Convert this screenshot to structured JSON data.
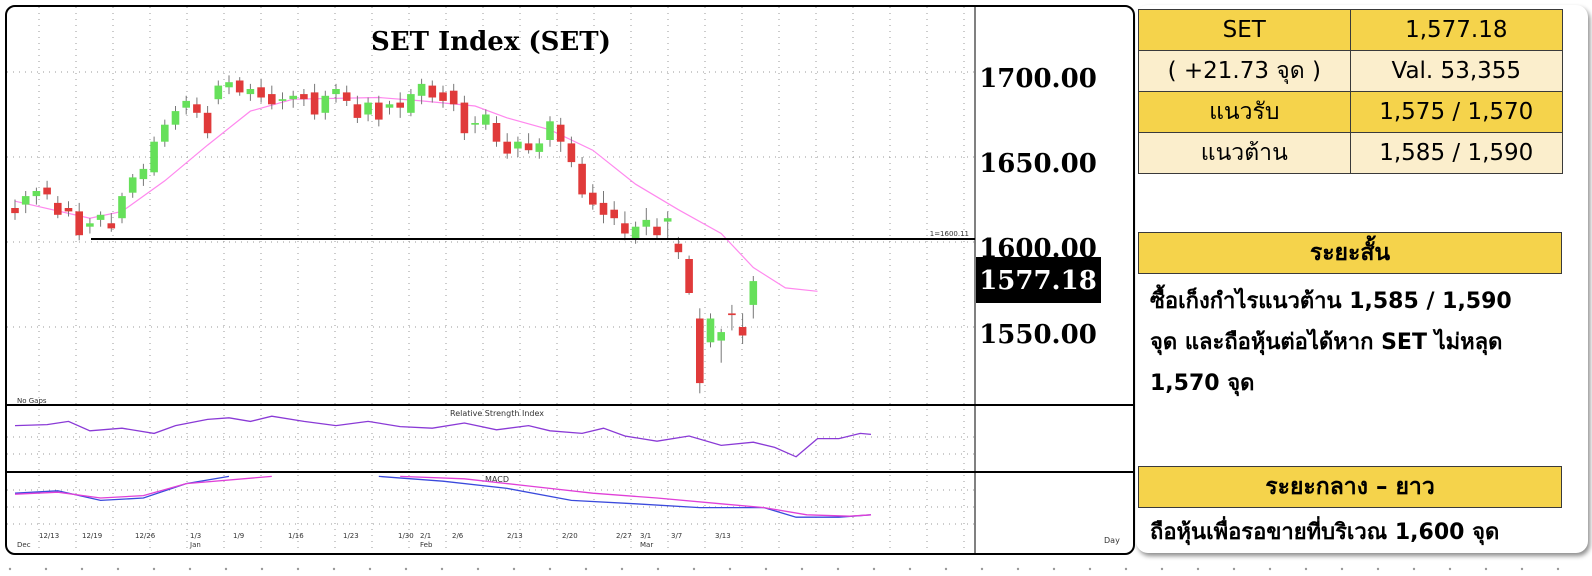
{
  "chart_data": {
    "type": "candlestick",
    "title": "SET Index (SET)",
    "current_price": "1577.18",
    "price_axis_labels": [
      "1700.00",
      "1650.00",
      "1600.00",
      "1550.00"
    ],
    "ylim": [
      1515,
      1738
    ],
    "support_line_value": 1600,
    "support_line_label": "1=1600.11",
    "date_labels": [
      "12/13",
      "12/19",
      "12/26",
      "1/3",
      "1/9",
      "1/16",
      "1/23",
      "1/30",
      "2/1",
      "2/6",
      "2/13",
      "2/20",
      "2/27",
      "3/1",
      "3/7",
      "3/13"
    ],
    "month_labels": [
      "Dec",
      "Jan",
      "Feb",
      "Mar"
    ],
    "x_axis_unit": "Day",
    "note": "No Gaps",
    "rsi_title": "Relative Strength Index",
    "macd_title": "MACD",
    "candles": [
      [
        1620,
        1625,
        1613,
        1617
      ],
      [
        1622,
        1630,
        1617,
        1627
      ],
      [
        1627,
        1632,
        1622,
        1630
      ],
      [
        1632,
        1636,
        1625,
        1628
      ],
      [
        1623,
        1627,
        1614,
        1616
      ],
      [
        1620,
        1624,
        1615,
        1618
      ],
      [
        1618,
        1623,
        1601,
        1604
      ],
      [
        1609,
        1614,
        1605,
        1611
      ],
      [
        1613,
        1618,
        1609,
        1616
      ],
      [
        1611,
        1617,
        1606,
        1608
      ],
      [
        1614,
        1629,
        1611,
        1627
      ],
      [
        1629,
        1640,
        1626,
        1638
      ],
      [
        1637,
        1646,
        1633,
        1643
      ],
      [
        1641,
        1662,
        1639,
        1659
      ],
      [
        1659,
        1672,
        1656,
        1669
      ],
      [
        1669,
        1680,
        1666,
        1677
      ],
      [
        1679,
        1686,
        1675,
        1683
      ],
      [
        1681,
        1685,
        1673,
        1676
      ],
      [
        1676,
        1680,
        1661,
        1664
      ],
      [
        1684,
        1695,
        1681,
        1692
      ],
      [
        1691,
        1698,
        1687,
        1694
      ],
      [
        1695,
        1697,
        1686,
        1688
      ],
      [
        1687,
        1693,
        1683,
        1690
      ],
      [
        1691,
        1696,
        1682,
        1685
      ],
      [
        1687,
        1692,
        1678,
        1681
      ],
      [
        1683,
        1688,
        1678,
        1684
      ],
      [
        1684,
        1689,
        1679,
        1686
      ],
      [
        1687,
        1690,
        1680,
        1684
      ],
      [
        1688,
        1693,
        1672,
        1675
      ],
      [
        1676,
        1689,
        1672,
        1686
      ],
      [
        1687,
        1693,
        1682,
        1690
      ],
      [
        1688,
        1692,
        1680,
        1683
      ],
      [
        1681,
        1686,
        1670,
        1673
      ],
      [
        1675,
        1685,
        1671,
        1682
      ],
      [
        1682,
        1686,
        1668,
        1672
      ],
      [
        1679,
        1683,
        1675,
        1681
      ],
      [
        1682,
        1688,
        1673,
        1679
      ],
      [
        1676,
        1690,
        1674,
        1687
      ],
      [
        1686,
        1696,
        1681,
        1693
      ],
      [
        1692,
        1695,
        1682,
        1685
      ],
      [
        1688,
        1692,
        1679,
        1683
      ],
      [
        1689,
        1693,
        1677,
        1681
      ],
      [
        1682,
        1686,
        1660,
        1664
      ],
      [
        1669,
        1674,
        1664,
        1670
      ],
      [
        1669,
        1678,
        1666,
        1675
      ],
      [
        1670,
        1674,
        1656,
        1659
      ],
      [
        1659,
        1664,
        1649,
        1652
      ],
      [
        1655,
        1662,
        1650,
        1659
      ],
      [
        1658,
        1664,
        1652,
        1654
      ],
      [
        1653,
        1661,
        1649,
        1658
      ],
      [
        1660,
        1674,
        1656,
        1671
      ],
      [
        1669,
        1673,
        1653,
        1659
      ],
      [
        1658,
        1662,
        1644,
        1647
      ],
      [
        1646,
        1650,
        1626,
        1628
      ],
      [
        1629,
        1634,
        1619,
        1622
      ],
      [
        1623,
        1630,
        1611,
        1616
      ],
      [
        1619,
        1624,
        1610,
        1614
      ],
      [
        1611,
        1618,
        1601,
        1605
      ],
      [
        1602,
        1612,
        1599,
        1609
      ],
      [
        1609,
        1620,
        1604,
        1613
      ],
      [
        1609,
        1614,
        1602,
        1604
      ],
      [
        1612,
        1618,
        1602,
        1614
      ],
      [
        1599,
        1603,
        1590,
        1594
      ],
      [
        1590,
        1592,
        1569,
        1570
      ],
      [
        1555,
        1561,
        1511,
        1517
      ],
      [
        1541,
        1558,
        1538,
        1555
      ],
      [
        1542,
        1549,
        1529,
        1547
      ],
      [
        1558,
        1563,
        1548,
        1557
      ],
      [
        1550,
        1558,
        1540,
        1545
      ],
      [
        1563,
        1580,
        1555,
        1577
      ]
    ],
    "ma": [
      [
        0,
        1624
      ],
      [
        7,
        1614
      ],
      [
        10,
        1618
      ],
      [
        14,
        1636
      ],
      [
        18,
        1657
      ],
      [
        22,
        1677
      ],
      [
        26,
        1684
      ],
      [
        34,
        1685
      ],
      [
        38,
        1683
      ],
      [
        43,
        1680
      ],
      [
        46,
        1673
      ],
      [
        50,
        1666
      ],
      [
        54,
        1654
      ],
      [
        58,
        1634
      ],
      [
        62,
        1619
      ],
      [
        66,
        1605
      ],
      [
        69,
        1585
      ],
      [
        72,
        1573
      ],
      [
        75,
        1571
      ]
    ],
    "rsi": [
      [
        0,
        0.3
      ],
      [
        3,
        0.28
      ],
      [
        5,
        0.22
      ],
      [
        7,
        0.4
      ],
      [
        10,
        0.35
      ],
      [
        13,
        0.45
      ],
      [
        15,
        0.3
      ],
      [
        18,
        0.18
      ],
      [
        20,
        0.15
      ],
      [
        22,
        0.22
      ],
      [
        24,
        0.12
      ],
      [
        27,
        0.22
      ],
      [
        30,
        0.3
      ],
      [
        33,
        0.22
      ],
      [
        36,
        0.32
      ],
      [
        39,
        0.35
      ],
      [
        42,
        0.25
      ],
      [
        45,
        0.38
      ],
      [
        48,
        0.3
      ],
      [
        50,
        0.4
      ],
      [
        53,
        0.45
      ],
      [
        55,
        0.35
      ],
      [
        57,
        0.5
      ],
      [
        60,
        0.6
      ],
      [
        63,
        0.5
      ],
      [
        66,
        0.68
      ],
      [
        69,
        0.62
      ],
      [
        71,
        0.72
      ],
      [
        73,
        0.9
      ],
      [
        75,
        0.55
      ],
      [
        77,
        0.55
      ],
      [
        79,
        0.45
      ],
      [
        80,
        0.47
      ]
    ],
    "macd_segments": [
      {
        "series": "macd",
        "points": [
          [
            0,
            0.4
          ],
          [
            4,
            0.35
          ],
          [
            8,
            0.55
          ],
          [
            12,
            0.5
          ],
          [
            16,
            0.2
          ],
          [
            20,
            0.05
          ]
        ]
      },
      {
        "series": "signal",
        "points": [
          [
            0,
            0.42
          ],
          [
            4,
            0.38
          ],
          [
            8,
            0.5
          ],
          [
            12,
            0.45
          ],
          [
            16,
            0.2
          ],
          [
            24,
            0.05
          ]
        ]
      },
      {
        "series": "macd",
        "points": [
          [
            34,
            0.05
          ],
          [
            40,
            0.15
          ],
          [
            46,
            0.3
          ],
          [
            52,
            0.55
          ],
          [
            58,
            0.62
          ],
          [
            64,
            0.7
          ],
          [
            70,
            0.7
          ],
          [
            73,
            0.9
          ],
          [
            77,
            0.9
          ],
          [
            80,
            0.85
          ]
        ]
      },
      {
        "series": "signal",
        "points": [
          [
            36,
            0.05
          ],
          [
            42,
            0.1
          ],
          [
            48,
            0.25
          ],
          [
            54,
            0.4
          ],
          [
            60,
            0.5
          ],
          [
            66,
            0.62
          ],
          [
            70,
            0.7
          ],
          [
            74,
            0.85
          ],
          [
            78,
            0.88
          ],
          [
            80,
            0.85
          ]
        ]
      }
    ]
  },
  "quote": {
    "symbol": "SET",
    "price": "1,577.18",
    "change": "( +21.73 จุด )",
    "value": "Val. 53,355",
    "support_label": "แนวรับ",
    "support_value": "1,575 / 1,570",
    "resistance_label": "แนวต้าน",
    "resistance_value": "1,585 / 1,590"
  },
  "short_term": {
    "heading": "ระยะสั้น",
    "line1": "ซื้อเก็งกำไรแนวต้าน 1,585 / 1,590",
    "line2": "จุด และถือหุ้นต่อได้หาก SET ไม่หลุด",
    "line3": "1,570 จุด"
  },
  "medium_term": {
    "heading": "ระยะกลาง – ยาว",
    "text": "ถือหุ้นเพื่อรอขายที่บริเวณ 1,600  จุด"
  },
  "colors": {
    "up_candle": "#66e05a",
    "down_candle": "#e03a3a",
    "ma_line": "#ff88ee",
    "rsi_line": "#8a3ad6",
    "macd_line": "#3a4adc",
    "signal_line": "#e040d8",
    "gold": "#f5d34b",
    "beige": "#fbeecc"
  }
}
